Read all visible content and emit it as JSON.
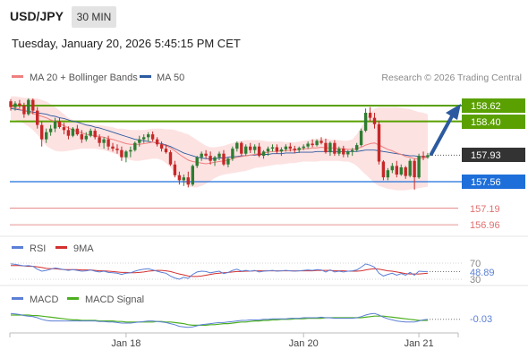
{
  "header": {
    "symbol": "USD/JPY",
    "timeframe": "30 MIN",
    "datetime": "Tuesday, January 20, 2026 5:45:15 PM CET",
    "credit": "Research © 2026 Trading Central"
  },
  "colors": {
    "ma20": "#f08080",
    "ma50": "#2c5aa0",
    "resistance": "#5aa000",
    "support": "#1e6fd9",
    "extra_support": "#e07070",
    "candle_up": "#2e7d32",
    "candle_down": "#c62828",
    "bollinger_fill": "#fde2e2",
    "rsi": "#5b7fd6",
    "rsi_ma": "#d32f2f",
    "macd": "#5b7fd6",
    "macd_signal": "#4caf20",
    "arrow": "#2c5aa0",
    "current_price": "#333333"
  },
  "legend": [
    {
      "label": "MA 20 + Bollinger Bands",
      "color": "#f08080"
    },
    {
      "label": "MA 50",
      "color": "#2c5aa0"
    }
  ],
  "levels": {
    "current": "157.93",
    "resistance": [
      "158.62",
      "158.40"
    ],
    "support": "157.56",
    "extra_support": [
      "157.19",
      "156.96"
    ]
  },
  "rsi_panel": {
    "legend": [
      {
        "label": "RSI",
        "color": "#5b7fd6"
      },
      {
        "label": "9MA",
        "color": "#d32f2f"
      }
    ],
    "levels": [
      "70",
      "30"
    ],
    "value": "48.89"
  },
  "macd_panel": {
    "legend": [
      {
        "label": "MACD",
        "color": "#5b7fd6"
      },
      {
        "label": "MACD Signal",
        "color": "#4caf20"
      }
    ],
    "value": "-0.03"
  },
  "x_axis_labels": [
    "Jan 18",
    "Jan 20",
    "Jan 21"
  ],
  "chart_data": {
    "type": "candlestick",
    "ylim": [
      156.85,
      158.75
    ],
    "candles": [
      [
        158.68,
        158.71,
        158.55,
        158.6
      ],
      [
        158.6,
        158.68,
        158.55,
        158.65
      ],
      [
        158.65,
        158.7,
        158.58,
        158.62
      ],
      [
        158.62,
        158.66,
        158.45,
        158.5
      ],
      [
        158.5,
        158.72,
        158.48,
        158.7
      ],
      [
        158.7,
        158.72,
        158.5,
        158.55
      ],
      [
        158.55,
        158.6,
        158.3,
        158.35
      ],
      [
        158.35,
        158.4,
        158.05,
        158.15
      ],
      [
        158.15,
        158.3,
        158.1,
        158.25
      ],
      [
        158.25,
        158.35,
        158.2,
        158.3
      ],
      [
        158.3,
        158.45,
        158.25,
        158.4
      ],
      [
        158.4,
        158.45,
        158.3,
        158.32
      ],
      [
        158.32,
        158.38,
        158.22,
        158.28
      ],
      [
        158.28,
        158.33,
        158.15,
        158.2
      ],
      [
        158.2,
        158.32,
        158.18,
        158.3
      ],
      [
        158.3,
        158.35,
        158.2,
        158.22
      ],
      [
        158.22,
        158.28,
        158.1,
        158.15
      ],
      [
        158.15,
        158.25,
        158.12,
        158.2
      ],
      [
        158.2,
        158.3,
        158.18,
        158.27
      ],
      [
        158.27,
        158.3,
        158.15,
        158.18
      ],
      [
        158.18,
        158.22,
        158.05,
        158.1
      ],
      [
        158.1,
        158.18,
        158.02,
        158.15
      ],
      [
        158.15,
        158.2,
        158.0,
        158.05
      ],
      [
        158.05,
        158.1,
        157.98,
        158.02
      ],
      [
        158.02,
        158.08,
        157.95,
        158.0
      ],
      [
        158.0,
        158.05,
        157.85,
        157.9
      ],
      [
        157.9,
        158.0,
        157.83,
        157.98
      ],
      [
        157.98,
        158.05,
        157.9,
        158.0
      ],
      [
        158.0,
        158.12,
        157.98,
        158.1
      ],
      [
        158.1,
        158.2,
        158.05,
        158.15
      ],
      [
        158.15,
        158.22,
        158.1,
        158.18
      ],
      [
        158.18,
        158.25,
        158.12,
        158.22
      ],
      [
        158.22,
        158.26,
        158.12,
        158.15
      ],
      [
        158.15,
        158.18,
        158.05,
        158.08
      ],
      [
        158.08,
        158.12,
        157.98,
        158.02
      ],
      [
        158.02,
        158.08,
        157.95,
        157.97
      ],
      [
        157.97,
        158.0,
        157.78,
        157.8
      ],
      [
        157.8,
        157.85,
        157.62,
        157.65
      ],
      [
        157.65,
        157.7,
        157.52,
        157.58
      ],
      [
        157.58,
        157.66,
        157.5,
        157.62
      ],
      [
        157.62,
        157.7,
        157.48,
        157.52
      ],
      [
        157.52,
        157.8,
        157.5,
        157.78
      ],
      [
        157.78,
        157.92,
        157.75,
        157.9
      ],
      [
        157.9,
        157.98,
        157.85,
        157.95
      ],
      [
        157.95,
        158.0,
        157.88,
        157.92
      ],
      [
        157.92,
        157.98,
        157.8,
        157.85
      ],
      [
        157.85,
        157.92,
        157.78,
        157.9
      ],
      [
        157.9,
        157.98,
        157.86,
        157.95
      ],
      [
        157.95,
        158.0,
        157.78,
        157.8
      ],
      [
        157.8,
        157.9,
        157.76,
        157.88
      ],
      [
        157.88,
        158.05,
        157.85,
        158.02
      ],
      [
        158.02,
        158.12,
        157.98,
        158.1
      ],
      [
        158.1,
        158.12,
        157.92,
        157.95
      ],
      [
        157.95,
        158.08,
        157.92,
        158.05
      ],
      [
        158.05,
        158.1,
        157.96,
        158.0
      ],
      [
        158.0,
        158.08,
        157.95,
        158.05
      ],
      [
        158.05,
        158.1,
        157.9,
        157.92
      ],
      [
        157.92,
        158.0,
        157.88,
        157.98
      ],
      [
        157.98,
        158.05,
        157.92,
        158.02
      ],
      [
        158.02,
        158.08,
        157.98,
        158.04
      ],
      [
        158.04,
        158.08,
        157.95,
        157.98
      ],
      [
        157.98,
        158.04,
        157.92,
        158.01
      ],
      [
        158.01,
        158.08,
        157.98,
        158.05
      ],
      [
        158.05,
        158.1,
        157.98,
        158.02
      ],
      [
        158.02,
        158.06,
        157.96,
        158.0
      ],
      [
        158.0,
        158.05,
        157.96,
        158.03
      ],
      [
        158.03,
        158.08,
        158.0,
        158.05
      ],
      [
        158.05,
        158.12,
        158.02,
        158.09
      ],
      [
        158.09,
        158.15,
        158.04,
        158.07
      ],
      [
        158.07,
        158.15,
        158.05,
        158.13
      ],
      [
        158.13,
        158.18,
        158.08,
        158.1
      ],
      [
        158.1,
        158.16,
        157.95,
        157.97
      ],
      [
        157.97,
        158.12,
        157.92,
        158.1
      ],
      [
        158.1,
        158.14,
        157.92,
        157.95
      ],
      [
        157.95,
        158.05,
        157.92,
        158.02
      ],
      [
        158.02,
        158.06,
        157.9,
        157.94
      ],
      [
        157.94,
        158.0,
        157.9,
        157.98
      ],
      [
        157.98,
        158.03,
        157.92,
        158.0
      ],
      [
        158.0,
        158.1,
        157.98,
        158.07
      ],
      [
        158.07,
        158.3,
        158.05,
        158.27
      ],
      [
        158.27,
        158.58,
        158.25,
        158.52
      ],
      [
        158.52,
        158.6,
        158.4,
        158.45
      ],
      [
        158.45,
        158.52,
        158.3,
        158.36
      ],
      [
        158.36,
        158.4,
        157.8,
        157.84
      ],
      [
        157.84,
        157.86,
        157.58,
        157.62
      ],
      [
        157.62,
        157.75,
        157.58,
        157.72
      ],
      [
        157.72,
        157.82,
        157.68,
        157.78
      ],
      [
        157.78,
        157.85,
        157.62,
        157.66
      ],
      [
        157.66,
        157.8,
        157.64,
        157.76
      ],
      [
        157.76,
        157.78,
        157.6,
        157.64
      ],
      [
        157.64,
        157.88,
        157.62,
        157.85
      ],
      [
        157.85,
        157.88,
        157.45,
        157.62
      ],
      [
        157.62,
        157.95,
        157.6,
        157.92
      ],
      [
        157.92,
        157.98,
        157.86,
        157.9
      ],
      [
        157.9,
        157.96,
        157.88,
        157.93
      ]
    ],
    "ma20": [
      158.6,
      158.59,
      158.57,
      158.55,
      158.53,
      158.51,
      158.49,
      158.47,
      158.45,
      158.42,
      158.4,
      158.37,
      158.34,
      158.31,
      158.28,
      158.26,
      158.24,
      158.22,
      158.21,
      158.2,
      158.19,
      158.18,
      158.16,
      158.15,
      158.13,
      158.11,
      158.09,
      158.08,
      158.08,
      158.08,
      158.09,
      158.1,
      158.11,
      158.1,
      158.08,
      158.06,
      158.03,
      157.99,
      157.94,
      157.9,
      157.86,
      157.84,
      157.83,
      157.82,
      157.81,
      157.82,
      157.83,
      157.84,
      157.85,
      157.86,
      157.88,
      157.9,
      157.91,
      157.92,
      157.93,
      157.94,
      157.95,
      157.96,
      157.97,
      157.98,
      157.98,
      157.99,
      157.99,
      158.0,
      158.0,
      158.01,
      158.02,
      158.02,
      158.03,
      158.03,
      158.04,
      158.03,
      158.03,
      158.03,
      158.02,
      158.02,
      158.01,
      158.01,
      158.02,
      158.04,
      158.07,
      158.09,
      158.1,
      158.07,
      158.04,
      158.01,
      157.99,
      157.96,
      157.94,
      157.91,
      157.9,
      157.88,
      157.88,
      157.89,
      157.9
    ],
    "ma50": [
      158.58,
      158.57,
      158.56,
      158.55,
      158.54,
      158.53,
      158.52,
      158.51,
      158.5,
      158.48,
      158.47,
      158.45,
      158.44,
      158.42,
      158.4,
      158.39,
      158.37,
      158.35,
      158.34,
      158.32,
      158.31,
      158.29,
      158.27,
      158.25,
      158.23,
      158.21,
      158.19,
      158.17,
      158.15,
      158.14,
      158.13,
      158.12,
      158.11,
      158.1,
      158.09,
      158.07,
      158.05,
      158.02,
      157.99,
      157.96,
      157.94,
      157.92,
      157.9,
      157.89,
      157.88,
      157.88,
      157.88,
      157.89,
      157.89,
      157.9,
      157.91,
      157.91,
      157.92,
      157.92,
      157.93,
      157.93,
      157.94,
      157.94,
      157.94,
      157.95,
      157.95,
      157.95,
      157.96,
      157.96,
      157.96,
      157.97,
      157.97,
      157.97,
      157.97,
      157.98,
      157.98,
      157.98,
      157.98,
      157.98,
      157.98,
      157.98,
      157.98,
      157.98,
      157.98,
      157.99,
      158.0,
      158.0,
      158.0,
      157.99,
      157.98,
      157.97,
      157.96,
      157.95,
      157.94,
      157.93,
      157.92,
      157.92,
      157.91,
      157.91,
      157.91
    ],
    "bb_upper": [
      158.75,
      158.75,
      158.74,
      158.73,
      158.73,
      158.72,
      158.72,
      158.7,
      158.68,
      158.64,
      158.6,
      158.55,
      158.5,
      158.45,
      158.42,
      158.4,
      158.38,
      158.37,
      158.36,
      158.35,
      158.35,
      158.34,
      158.33,
      158.32,
      158.3,
      158.3,
      158.29,
      158.28,
      158.28,
      158.28,
      158.28,
      158.29,
      158.3,
      158.3,
      158.3,
      158.29,
      158.29,
      158.28,
      158.26,
      158.24,
      158.22,
      158.18,
      158.14,
      158.1,
      158.06,
      158.04,
      158.04,
      158.05,
      158.06,
      158.08,
      158.1,
      158.12,
      158.13,
      158.14,
      158.14,
      158.14,
      158.14,
      158.13,
      158.12,
      158.12,
      158.12,
      158.12,
      158.11,
      158.11,
      158.11,
      158.12,
      158.13,
      158.14,
      158.15,
      158.16,
      158.16,
      158.16,
      158.15,
      158.14,
      158.14,
      158.13,
      158.13,
      158.15,
      158.22,
      158.32,
      158.42,
      158.52,
      158.58,
      158.6,
      158.6,
      158.6,
      158.6,
      158.6,
      158.59,
      158.58,
      158.57,
      158.55,
      158.53,
      158.52,
      158.5
    ],
    "bb_lower": [
      158.42,
      158.42,
      158.4,
      158.37,
      158.33,
      158.28,
      158.22,
      158.14,
      158.06,
      158.02,
      157.99,
      157.98,
      157.98,
      157.99,
      158.0,
      158.01,
      158.02,
      158.02,
      158.02,
      158.02,
      158.01,
      158.0,
      157.98,
      157.96,
      157.94,
      157.9,
      157.88,
      157.86,
      157.85,
      157.85,
      157.86,
      157.87,
      157.88,
      157.88,
      157.86,
      157.82,
      157.76,
      157.68,
      157.6,
      157.55,
      157.5,
      157.48,
      157.48,
      157.5,
      157.53,
      157.57,
      157.61,
      157.64,
      157.66,
      157.67,
      157.68,
      157.69,
      157.7,
      157.71,
      157.73,
      157.75,
      157.76,
      157.77,
      157.78,
      157.79,
      157.8,
      157.8,
      157.81,
      157.82,
      157.82,
      157.83,
      157.84,
      157.84,
      157.84,
      157.84,
      157.85,
      157.85,
      157.85,
      157.85,
      157.85,
      157.84,
      157.84,
      157.82,
      157.78,
      157.72,
      157.66,
      157.6,
      157.54,
      157.5,
      157.48,
      157.46,
      157.45,
      157.44,
      157.44,
      157.44,
      157.45,
      157.46,
      157.47,
      157.48,
      157.49
    ],
    "rsi": {
      "ylim": [
        0,
        100
      ],
      "levels": [
        70,
        30
      ],
      "rsi": [
        68,
        67,
        65,
        63,
        64,
        62,
        55,
        50,
        52,
        55,
        58,
        56,
        54,
        52,
        54,
        52,
        50,
        51,
        53,
        50,
        48,
        50,
        47,
        46,
        45,
        42,
        45,
        46,
        50,
        53,
        55,
        56,
        53,
        50,
        47,
        45,
        38,
        33,
        30,
        35,
        32,
        42,
        48,
        50,
        49,
        46,
        48,
        50,
        44,
        47,
        52,
        55,
        50,
        52,
        50,
        52,
        48,
        50,
        51,
        52,
        50,
        51,
        52,
        51,
        50,
        51,
        52,
        53,
        52,
        54,
        53,
        48,
        53,
        48,
        50,
        48,
        50,
        51,
        53,
        60,
        68,
        65,
        60,
        45,
        38,
        42,
        45,
        40,
        44,
        40,
        47,
        40,
        50,
        49,
        49
      ],
      "ma9": [
        64,
        64,
        64,
        63,
        62,
        62,
        61,
        59,
        57,
        56,
        56,
        55,
        54,
        54,
        54,
        54,
        53,
        53,
        53,
        52,
        51,
        51,
        50,
        49,
        48,
        47,
        47,
        46,
        46,
        47,
        48,
        50,
        51,
        52,
        52,
        51,
        49,
        46,
        43,
        41,
        38,
        37,
        37,
        38,
        40,
        42,
        44,
        45,
        46,
        47,
        48,
        49,
        49,
        50,
        50,
        51,
        51,
        51,
        51,
        51,
        51,
        51,
        51,
        51,
        51,
        51,
        51,
        51,
        51,
        52,
        52,
        52,
        52,
        51,
        51,
        51,
        50,
        50,
        50,
        51,
        53,
        55,
        56,
        55,
        53,
        51,
        50,
        48,
        46,
        44,
        43,
        43,
        43,
        44,
        45
      ]
    },
    "macd": {
      "ylim": [
        -0.25,
        0.15
      ],
      "macd": [
        0.08,
        0.07,
        0.06,
        0.04,
        0.03,
        0.02,
        0.0,
        -0.03,
        -0.05,
        -0.06,
        -0.06,
        -0.06,
        -0.06,
        -0.06,
        -0.06,
        -0.06,
        -0.06,
        -0.06,
        -0.06,
        -0.06,
        -0.07,
        -0.07,
        -0.08,
        -0.08,
        -0.09,
        -0.1,
        -0.1,
        -0.1,
        -0.09,
        -0.08,
        -0.07,
        -0.06,
        -0.06,
        -0.07,
        -0.08,
        -0.09,
        -0.11,
        -0.13,
        -0.16,
        -0.17,
        -0.18,
        -0.17,
        -0.15,
        -0.13,
        -0.12,
        -0.11,
        -0.1,
        -0.09,
        -0.09,
        -0.08,
        -0.07,
        -0.06,
        -0.05,
        -0.05,
        -0.04,
        -0.04,
        -0.04,
        -0.03,
        -0.03,
        -0.02,
        -0.02,
        -0.02,
        -0.02,
        -0.01,
        -0.01,
        -0.01,
        0.0,
        0.0,
        0.0,
        0.0,
        0.01,
        0.0,
        0.0,
        -0.01,
        -0.01,
        -0.01,
        -0.01,
        -0.01,
        0.0,
        0.02,
        0.05,
        0.07,
        0.08,
        0.05,
        0.01,
        -0.02,
        -0.04,
        -0.06,
        -0.07,
        -0.08,
        -0.08,
        -0.08,
        -0.06,
        -0.04,
        -0.03
      ],
      "signal": [
        0.05,
        0.05,
        0.05,
        0.05,
        0.05,
        0.04,
        0.04,
        0.03,
        0.02,
        0.01,
        0.0,
        -0.01,
        -0.02,
        -0.03,
        -0.04,
        -0.04,
        -0.05,
        -0.05,
        -0.05,
        -0.05,
        -0.06,
        -0.06,
        -0.06,
        -0.06,
        -0.07,
        -0.07,
        -0.08,
        -0.08,
        -0.08,
        -0.08,
        -0.08,
        -0.08,
        -0.08,
        -0.07,
        -0.07,
        -0.08,
        -0.08,
        -0.09,
        -0.1,
        -0.11,
        -0.13,
        -0.14,
        -0.14,
        -0.14,
        -0.14,
        -0.13,
        -0.13,
        -0.12,
        -0.11,
        -0.11,
        -0.1,
        -0.09,
        -0.08,
        -0.08,
        -0.07,
        -0.06,
        -0.06,
        -0.05,
        -0.05,
        -0.04,
        -0.04,
        -0.03,
        -0.03,
        -0.03,
        -0.02,
        -0.02,
        -0.02,
        -0.01,
        -0.01,
        -0.01,
        -0.01,
        0.0,
        0.0,
        0.0,
        0.0,
        0.0,
        0.0,
        0.0,
        0.0,
        0.0,
        0.01,
        0.02,
        0.03,
        0.03,
        0.03,
        0.02,
        0.01,
        0.0,
        -0.01,
        -0.02,
        -0.03,
        -0.04,
        -0.05,
        -0.05,
        -0.05
      ]
    },
    "x_label_candle_index": [
      26,
      66,
      92
    ]
  }
}
